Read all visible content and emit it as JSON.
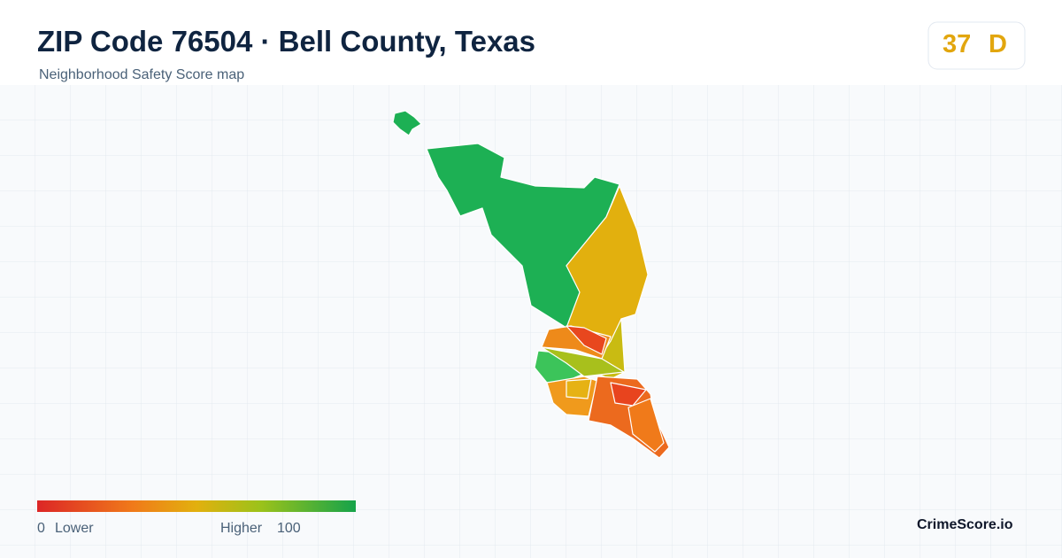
{
  "header": {
    "title": "ZIP Code 76504 · Bell County, Texas",
    "subtitle": "Neighborhood Safety Score map"
  },
  "score": {
    "value": "37",
    "grade": "D"
  },
  "legend": {
    "min": "0",
    "min_label": "Lower",
    "max_label": "Higher",
    "max": "100"
  },
  "brand": "CrimeScore.io"
}
